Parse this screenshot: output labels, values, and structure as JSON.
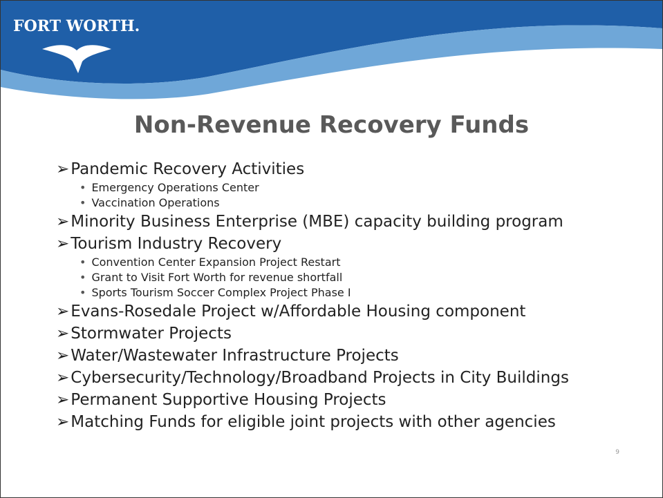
{
  "header": {
    "logo": "FORT WORTH."
  },
  "title": "Non-Revenue Recovery Funds",
  "items": [
    {
      "text": "Pandemic Recovery Activities",
      "sub": [
        "Emergency Operations Center",
        "Vaccination Operations"
      ]
    },
    {
      "text": "Minority Business Enterprise (MBE) capacity building program",
      "sub": []
    },
    {
      "text": "Tourism Industry Recovery",
      "sub": [
        "Convention Center Expansion Project Restart",
        "Grant to Visit Fort Worth for revenue shortfall",
        "Sports Tourism Soccer Complex Project Phase I"
      ]
    },
    {
      "text": "Evans-Rosedale Project w/Affordable Housing component",
      "sub": []
    },
    {
      "text": "Stormwater Projects",
      "sub": []
    },
    {
      "text": "Water/Wastewater Infrastructure Projects",
      "sub": []
    },
    {
      "text": "Cybersecurity/Technology/Broadband Projects in City Buildings",
      "sub": []
    },
    {
      "text": "Permanent Supportive Housing Projects",
      "sub": []
    },
    {
      "text": "Matching Funds for eligible joint projects with other agencies",
      "sub": []
    }
  ],
  "page_number": "9"
}
